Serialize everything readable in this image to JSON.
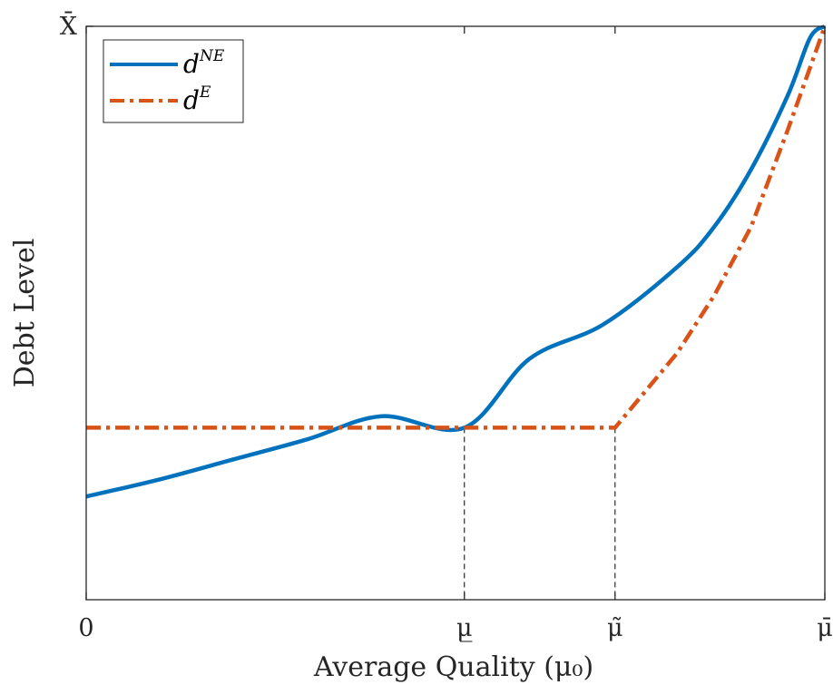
{
  "chart_data": {
    "type": "line",
    "title": "",
    "xlabel": "Average Quality (μ₀)",
    "ylabel": "Debt Level",
    "xlim": [
      0,
      1
    ],
    "ylim": [
      0,
      1
    ],
    "x_ticks": [
      {
        "value": 0,
        "label": "0"
      },
      {
        "value": 0.512,
        "label": "μ̲"
      },
      {
        "value": 0.716,
        "label": "μ̃"
      },
      {
        "value": 1,
        "label": "μ̄"
      }
    ],
    "y_ticks": [
      {
        "value": 1,
        "label": "X̄"
      }
    ],
    "grid": false,
    "legend_position": "top-left",
    "series": [
      {
        "name": "d^{NE}",
        "legend_base": "d",
        "legend_sup": "NE",
        "color": "#0072BD",
        "style": "solid",
        "x": [
          0,
          0.1,
          0.2,
          0.3,
          0.4,
          0.512,
          0.6,
          0.7,
          0.8,
          0.85,
          0.9,
          0.95,
          0.98,
          1
        ],
        "y": [
          0.18,
          0.21,
          0.245,
          0.28,
          0.32,
          0.3,
          0.42,
          0.48,
          0.58,
          0.65,
          0.75,
          0.88,
          0.98,
          1
        ]
      },
      {
        "name": "d^{E}",
        "legend_base": "d",
        "legend_sup": "E",
        "color": "#D95319",
        "style": "dashdot",
        "x": [
          0,
          0.2,
          0.4,
          0.512,
          0.6,
          0.716,
          0.8,
          0.85,
          0.9,
          0.95,
          1
        ],
        "y": [
          0.3,
          0.3,
          0.3,
          0.3,
          0.3,
          0.3,
          0.43,
          0.53,
          0.65,
          0.82,
          1
        ]
      }
    ],
    "reference_lines": [
      {
        "x": 0.512,
        "y": 0.3,
        "style": "dashed"
      },
      {
        "x": 0.716,
        "y": 0.3,
        "style": "dashed"
      }
    ]
  }
}
